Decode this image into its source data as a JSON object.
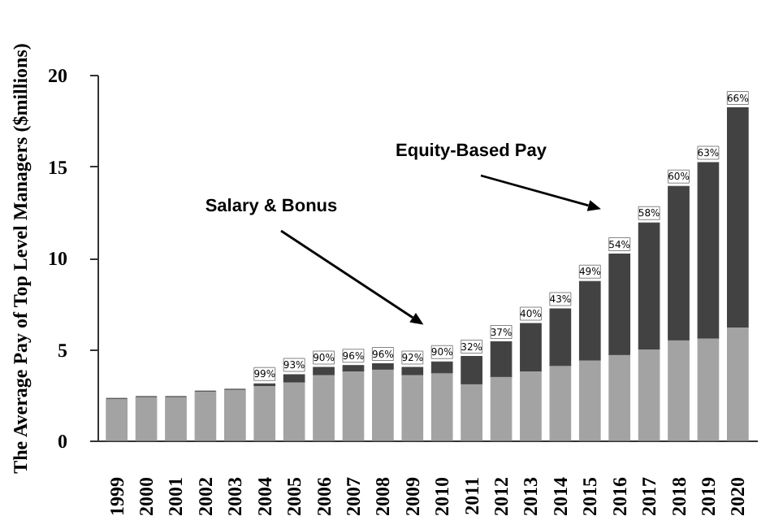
{
  "chart_data": {
    "type": "bar",
    "stacked": true,
    "ylabel": "The Average Pay of Top Level Managers ($millions)",
    "categories": [
      "1999",
      "2000",
      "2001",
      "2002",
      "2003",
      "2004",
      "2005",
      "2006",
      "2007",
      "2008",
      "2009",
      "2010",
      "2011",
      "2012",
      "2013",
      "2014",
      "2015",
      "2016",
      "2017",
      "2018",
      "2019",
      "2020"
    ],
    "series": [
      {
        "color": "#a3a3a3",
        "values": [
          2.3,
          2.4,
          2.4,
          2.7,
          2.8,
          3.0,
          3.2,
          3.6,
          3.8,
          3.9,
          3.6,
          3.7,
          3.1,
          3.5,
          3.8,
          4.1,
          4.4,
          4.7,
          5.0,
          5.5,
          5.6,
          6.2
        ]
      },
      {
        "color": "#424242",
        "values": [
          0,
          0,
          0,
          0,
          0,
          0.1,
          0.4,
          0.4,
          0.3,
          0.3,
          0.4,
          0.6,
          1.5,
          1.9,
          2.6,
          3.1,
          4.3,
          5.5,
          6.9,
          8.4,
          9.6,
          12.0
        ]
      }
    ],
    "ylim": [
      0,
      20
    ],
    "yticks": [
      0,
      5,
      10,
      15,
      20
    ],
    "annotations": [
      "Salary & Bonus",
      "Equity-Based Pay",
      {
        "text": "99%",
        "x": "2004",
        "y": 3.1
      },
      {
        "text": "93%",
        "x": "2005",
        "y": 3.6
      },
      {
        "text": "90%",
        "x": "2006",
        "y": 4.0
      },
      {
        "text": "96%",
        "x": "2007",
        "y": 4.1
      },
      {
        "text": "96%",
        "x": "2008",
        "y": 4.2
      },
      {
        "text": "92%",
        "x": "2009",
        "y": 4.0
      },
      {
        "text": "90%",
        "x": "2010",
        "y": 4.3
      },
      {
        "text": "32%",
        "x": "2011",
        "y": 4.6
      },
      {
        "text": "37%",
        "x": "2012",
        "y": 5.4
      },
      {
        "text": "40%",
        "x": "2013",
        "y": 6.4
      },
      {
        "text": "43%",
        "x": "2014",
        "y": 7.2
      },
      {
        "text": "49%",
        "x": "2015",
        "y": 8.7
      },
      {
        "text": "54%",
        "x": "2016",
        "y": 10.2
      },
      {
        "text": "58%",
        "x": "2017",
        "y": 11.9
      },
      {
        "text": "60%",
        "x": "2018",
        "y": 13.9
      },
      {
        "text": "63%",
        "x": "2019",
        "y": 15.2
      },
      {
        "text": "66%",
        "x": "2020",
        "y": 18.2
      }
    ]
  }
}
